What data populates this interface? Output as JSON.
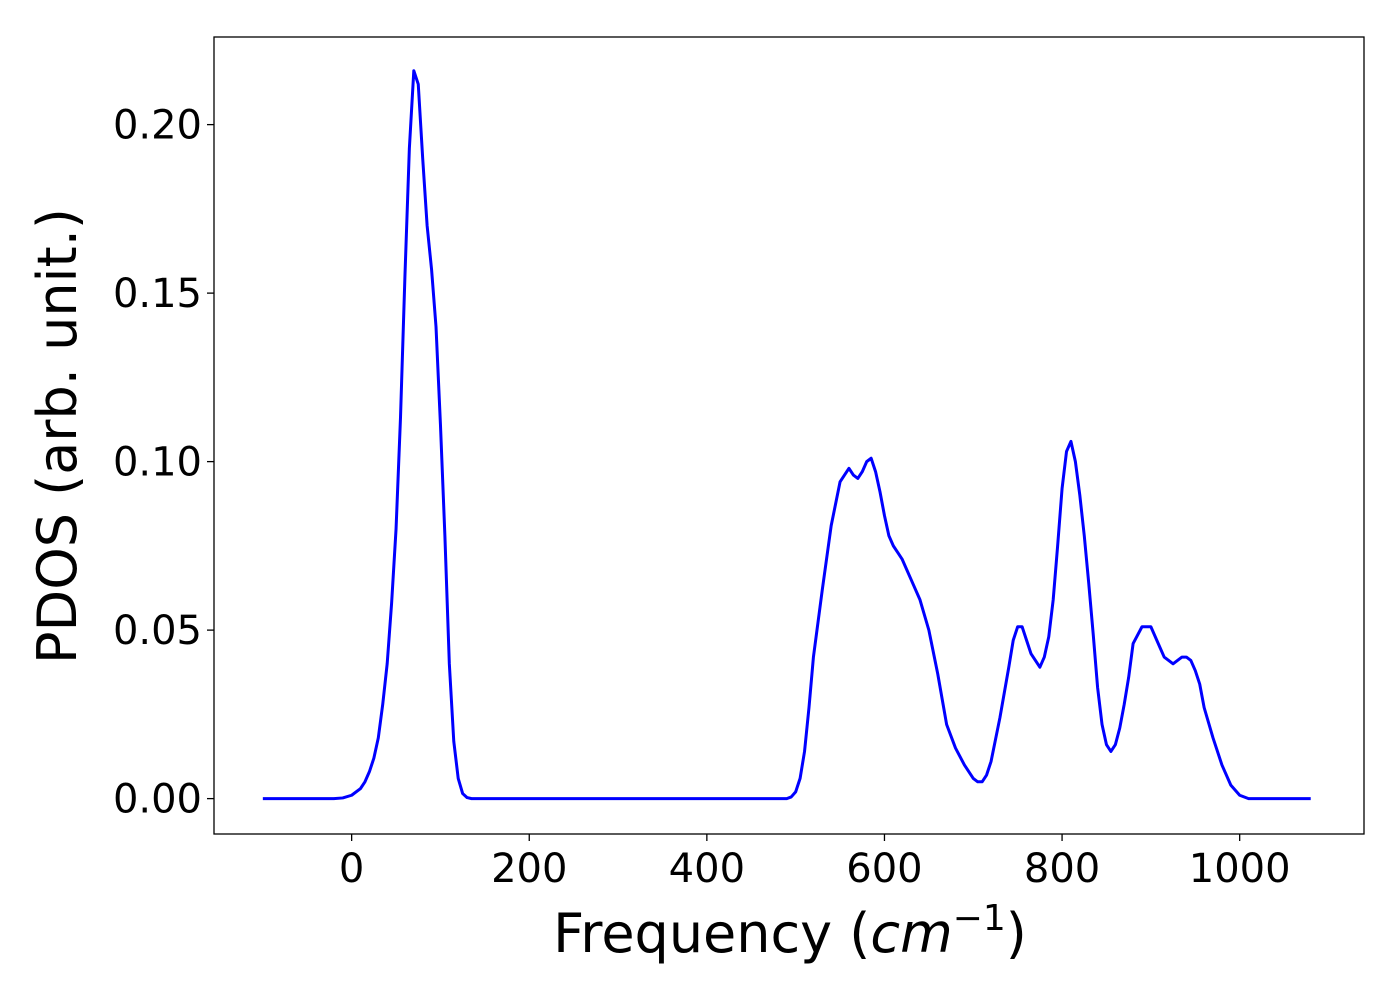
{
  "chart_data": {
    "type": "line",
    "title": "",
    "xlabel": "Frequency (cm⁻¹)",
    "xlabel_parts": {
      "prefix": "Frequency (",
      "math_base": "cm",
      "math_sup": "−1",
      "suffix": ")"
    },
    "ylabel": "PDOS (arb. unit.)",
    "xlim": [
      -155,
      1140
    ],
    "ylim": [
      -0.0105,
      0.226
    ],
    "xticks": [
      0,
      200,
      400,
      600,
      800,
      1000
    ],
    "xtick_labels": [
      "0",
      "200",
      "400",
      "600",
      "800",
      "1000"
    ],
    "yticks": [
      0.0,
      0.05,
      0.1,
      0.15,
      0.2
    ],
    "ytick_labels": [
      "0.00",
      "0.05",
      "0.10",
      "0.15",
      "0.20"
    ],
    "grid": false,
    "legend": "none",
    "series": [
      {
        "color": "#0000ff",
        "x": [
          -100,
          -40,
          -20,
          -10,
          0,
          10,
          15,
          20,
          25,
          30,
          35,
          40,
          45,
          50,
          55,
          60,
          65,
          70,
          75,
          80,
          85,
          90,
          95,
          100,
          105,
          110,
          115,
          120,
          125,
          130,
          135,
          140,
          145,
          150,
          160,
          200,
          300,
          400,
          480,
          490,
          495,
          500,
          505,
          510,
          515,
          520,
          530,
          540,
          550,
          560,
          565,
          570,
          575,
          580,
          585,
          590,
          595,
          600,
          605,
          610,
          615,
          620,
          625,
          630,
          640,
          650,
          660,
          670,
          680,
          690,
          700,
          705,
          710,
          715,
          720,
          730,
          740,
          745,
          750,
          755,
          760,
          765,
          770,
          775,
          780,
          785,
          790,
          795,
          800,
          805,
          810,
          815,
          820,
          825,
          830,
          835,
          840,
          845,
          850,
          855,
          860,
          865,
          870,
          875,
          880,
          890,
          900,
          905,
          910,
          915,
          920,
          925,
          930,
          935,
          940,
          945,
          950,
          955,
          960,
          970,
          980,
          990,
          1000,
          1010,
          1080
        ],
        "y": [
          0.0,
          0.0,
          0.0,
          0.0002,
          0.001,
          0.003,
          0.005,
          0.008,
          0.012,
          0.018,
          0.028,
          0.04,
          0.058,
          0.08,
          0.113,
          0.155,
          0.193,
          0.216,
          0.212,
          0.19,
          0.17,
          0.157,
          0.14,
          0.111,
          0.078,
          0.04,
          0.017,
          0.006,
          0.0015,
          0.0003,
          0.0,
          0.0,
          0.0,
          0.0,
          0.0,
          0.0,
          0.0,
          0.0,
          0.0,
          0.0,
          0.0005,
          0.002,
          0.006,
          0.014,
          0.027,
          0.042,
          0.062,
          0.081,
          0.094,
          0.098,
          0.096,
          0.095,
          0.097,
          0.1,
          0.101,
          0.097,
          0.091,
          0.084,
          0.078,
          0.075,
          0.073,
          0.071,
          0.068,
          0.065,
          0.059,
          0.05,
          0.037,
          0.022,
          0.015,
          0.01,
          0.006,
          0.005,
          0.005,
          0.007,
          0.011,
          0.024,
          0.039,
          0.047,
          0.051,
          0.051,
          0.047,
          0.043,
          0.041,
          0.039,
          0.042,
          0.048,
          0.059,
          0.075,
          0.092,
          0.103,
          0.106,
          0.1,
          0.09,
          0.078,
          0.064,
          0.049,
          0.033,
          0.022,
          0.016,
          0.014,
          0.016,
          0.021,
          0.028,
          0.036,
          0.046,
          0.051,
          0.051,
          0.048,
          0.045,
          0.042,
          0.041,
          0.04,
          0.041,
          0.042,
          0.042,
          0.041,
          0.038,
          0.034,
          0.027,
          0.018,
          0.01,
          0.004,
          0.001,
          0.0,
          0.0
        ]
      }
    ]
  }
}
